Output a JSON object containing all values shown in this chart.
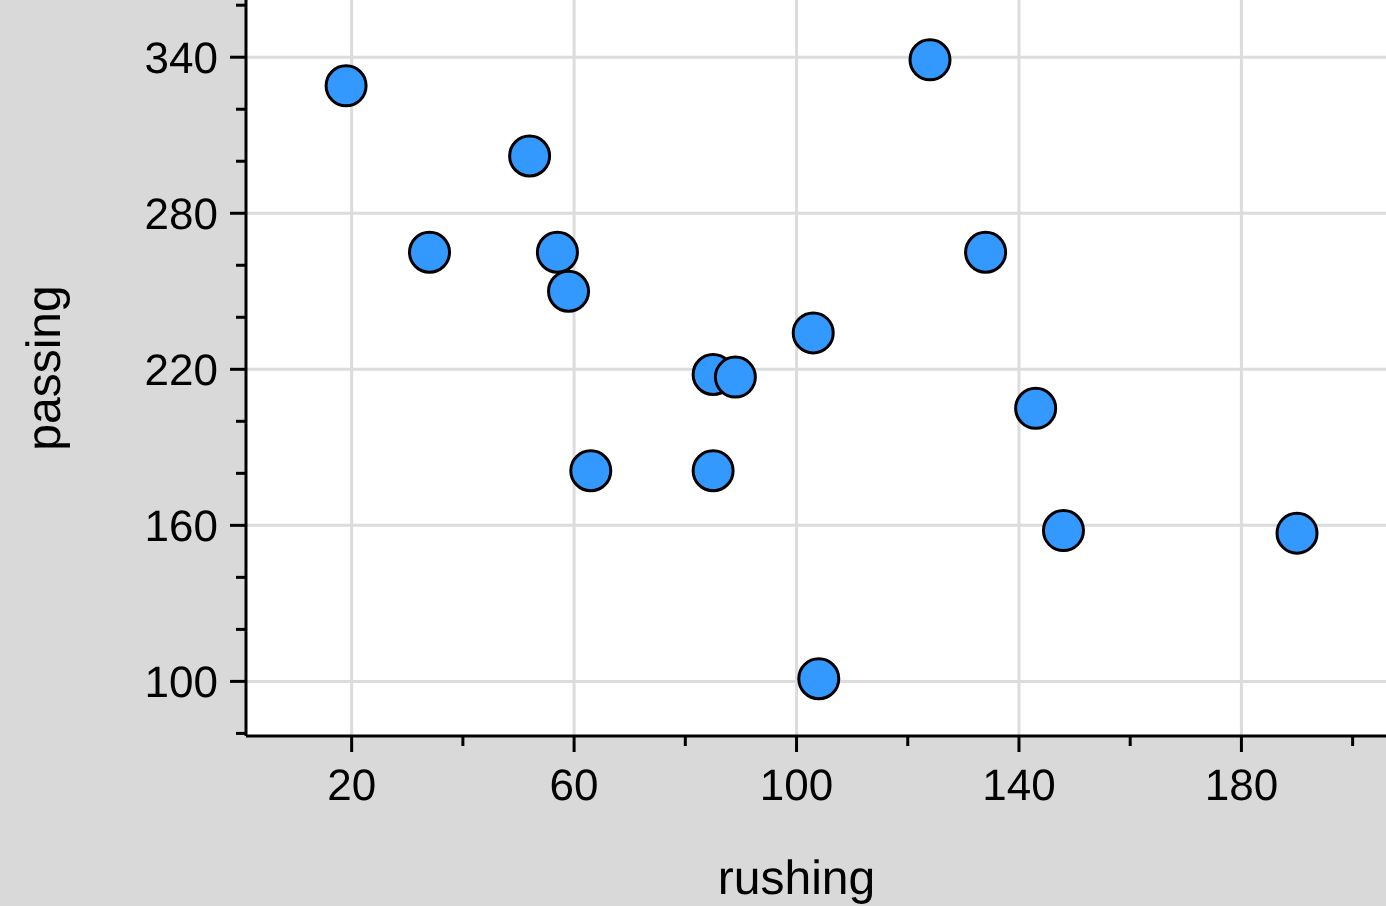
{
  "chart_data": {
    "type": "scatter",
    "xlabel": "rushing",
    "ylabel": "passing",
    "xlim": [
      1,
      206
    ],
    "ylim": [
      79,
      362
    ],
    "xticks": [
      20,
      {
        "value": 40,
        "label": null
      },
      60,
      {
        "value": 80,
        "label": null
      },
      100,
      {
        "value": 120,
        "label": null
      },
      140,
      {
        "value": 160,
        "label": null
      },
      180,
      {
        "value": 200,
        "label": null
      }
    ],
    "yticks": [
      {
        "value": 80,
        "label": null
      },
      100,
      {
        "value": 120,
        "label": null
      },
      {
        "value": 140,
        "label": null
      },
      160,
      {
        "value": 180,
        "label": null
      },
      {
        "value": 200,
        "label": null
      },
      220,
      {
        "value": 240,
        "label": null
      },
      {
        "value": 260,
        "label": null
      },
      280,
      {
        "value": 300,
        "label": null
      },
      {
        "value": 320,
        "label": null
      },
      340,
      {
        "value": 360,
        "label": null
      }
    ],
    "grid": true,
    "marker": "circle",
    "series": [
      {
        "color": "#3399ff",
        "x": [
          19,
          34,
          52,
          57,
          59,
          63,
          85,
          89,
          85,
          103,
          124,
          134,
          104,
          143,
          148,
          190
        ],
        "values": [
          329,
          265,
          302,
          265,
          250,
          181,
          218,
          217,
          181,
          234,
          339,
          265,
          101,
          205,
          158,
          157
        ]
      }
    ]
  }
}
